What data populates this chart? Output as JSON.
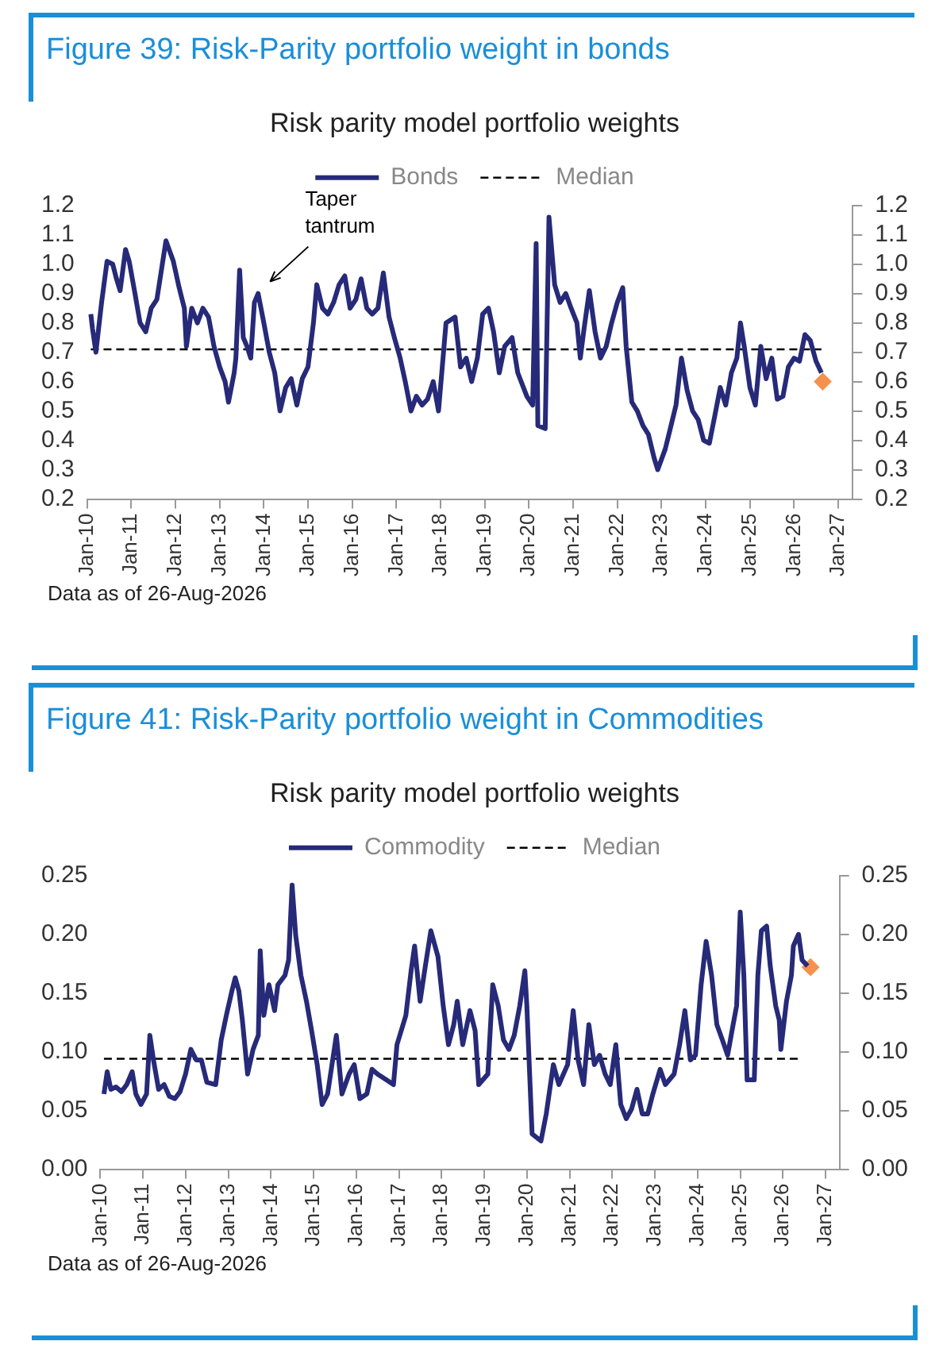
{
  "chart_data": [
    {
      "type": "line",
      "title": "Figure 39: Risk-Parity portfolio weight in bonds",
      "subtitle": "Risk parity model portfolio weights",
      "xlim": [
        "2010-01-01",
        "2027-05-01"
      ],
      "xticks": [
        {
          "value": "2010-01-01",
          "label": "Jan-10"
        },
        {
          "value": "2011-01-01",
          "label": "Jan-11"
        },
        {
          "value": "2012-01-01",
          "label": "Jan-12"
        },
        {
          "value": "2013-01-01",
          "label": "Jan-13"
        },
        {
          "value": "2014-01-01",
          "label": "Jan-14"
        },
        {
          "value": "2015-01-01",
          "label": "Jan-15"
        },
        {
          "value": "2016-01-01",
          "label": "Jan-16"
        },
        {
          "value": "2017-01-01",
          "label": "Jan-17"
        },
        {
          "value": "2018-01-01",
          "label": "Jan-18"
        },
        {
          "value": "2019-01-01",
          "label": "Jan-19"
        },
        {
          "value": "2020-01-01",
          "label": "Jan-20"
        },
        {
          "value": "2021-01-01",
          "label": "Jan-21"
        },
        {
          "value": "2022-01-01",
          "label": "Jan-22"
        },
        {
          "value": "2023-01-01",
          "label": "Jan-23"
        },
        {
          "value": "2024-01-01",
          "label": "Jan-24"
        },
        {
          "value": "2025-01-01",
          "label": "Jan-25"
        },
        {
          "value": "2026-01-01",
          "label": "Jan-26"
        },
        {
          "value": "2027-01-01",
          "label": "Jan-27"
        }
      ],
      "ylim": [
        0.2,
        1.2
      ],
      "yticks": [
        0.2,
        0.3,
        0.4,
        0.5,
        0.6,
        0.7,
        0.8,
        0.9,
        {
          "value": 1,
          "label": "1.0"
        },
        1.1,
        1.2
      ],
      "y2lim": [
        0.2,
        1.2
      ],
      "y2ticks": [
        0.2,
        0.3,
        0.4,
        0.5,
        0.6,
        0.7,
        0.8,
        0.9,
        {
          "value": 1,
          "label": "1.0"
        },
        1.1,
        1.2
      ],
      "grid": false,
      "legend": "top",
      "series": [
        {
          "name": "Bonds",
          "type": "line",
          "color": "#262a78",
          "line_style": "solid",
          "marker": "none",
          "x": [
            "2010-02-01",
            "2010-02-15",
            "2010-03-15",
            "2010-05-01",
            "2010-06-15",
            "2010-08-01",
            "2010-09-01",
            "2010-10-01",
            "2010-11-15",
            "2010-12-15",
            "2011-02-01",
            "2011-03-15",
            "2011-05-01",
            "2011-06-15",
            "2011-08-01",
            "2011-09-15",
            "2011-10-15",
            "2011-12-15",
            "2012-02-01",
            "2012-03-15",
            "2012-04-01",
            "2012-05-15",
            "2012-07-01",
            "2012-08-15",
            "2012-10-01",
            "2012-11-15",
            "2013-01-01",
            "2013-02-15",
            "2013-03-15",
            "2013-05-01",
            "2013-05-15",
            "2013-06-15",
            "2013-07-15",
            "2013-08-15",
            "2013-09-15",
            "2013-10-15",
            "2013-11-15",
            "2014-01-01",
            "2014-02-15",
            "2014-04-01",
            "2014-05-15",
            "2014-07-01",
            "2014-08-15",
            "2014-10-01",
            "2014-11-15",
            "2015-01-01",
            "2015-02-15",
            "2015-03-15",
            "2015-05-01",
            "2015-06-15",
            "2015-08-01",
            "2015-09-15",
            "2015-11-01",
            "2015-12-15",
            "2016-02-01",
            "2016-03-15",
            "2016-05-01",
            "2016-06-15",
            "2016-08-01",
            "2016-09-15",
            "2016-11-01",
            "2016-12-15",
            "2017-02-01",
            "2017-03-15",
            "2017-05-01",
            "2017-06-15",
            "2017-08-01",
            "2017-09-15",
            "2017-11-01",
            "2017-12-15",
            "2018-02-15",
            "2018-05-01",
            "2018-06-15",
            "2018-08-01",
            "2018-09-15",
            "2018-11-01",
            "2018-12-15",
            "2019-02-01",
            "2019-03-15",
            "2019-05-01",
            "2019-06-15",
            "2019-08-15",
            "2019-10-01",
            "2019-12-15",
            "2020-02-01",
            "2020-03-01",
            "2020-03-15",
            "2020-05-15",
            "2020-06-15",
            "2020-08-01",
            "2020-09-15",
            "2020-11-01",
            "2020-12-15",
            "2021-02-01",
            "2021-03-01",
            "2021-04-01",
            "2021-05-15",
            "2021-07-01",
            "2021-08-15",
            "2021-10-01",
            "2021-11-15",
            "2022-01-01",
            "2022-02-15",
            "2022-03-15",
            "2022-05-01",
            "2022-06-15",
            "2022-08-01",
            "2022-09-15",
            "2022-11-01",
            "2022-12-01",
            "2023-02-01",
            "2023-03-15",
            "2023-05-01",
            "2023-06-15",
            "2023-08-01",
            "2023-09-15",
            "2023-11-01",
            "2023-12-15",
            "2024-02-01",
            "2024-03-15",
            "2024-05-01",
            "2024-06-15",
            "2024-08-01",
            "2024-09-15",
            "2024-10-15",
            "2024-11-15",
            "2025-01-01",
            "2025-02-15",
            "2025-04-01",
            "2025-05-15",
            "2025-07-01",
            "2025-08-15",
            "2025-10-01",
            "2025-11-15",
            "2026-01-01",
            "2026-02-15",
            "2026-04-01",
            "2026-05-15",
            "2026-07-01",
            "2026-08-15"
          ],
          "values": [
            0.83,
            0.78,
            0.7,
            0.87,
            1.01,
            1.0,
            0.95,
            0.91,
            1.05,
            1.01,
            0.9,
            0.8,
            0.77,
            0.85,
            0.88,
            1.0,
            1.08,
            1.01,
            0.92,
            0.85,
            0.72,
            0.85,
            0.8,
            0.85,
            0.82,
            0.72,
            0.65,
            0.6,
            0.53,
            0.63,
            0.68,
            0.98,
            0.75,
            0.72,
            0.68,
            0.87,
            0.9,
            0.8,
            0.7,
            0.63,
            0.5,
            0.58,
            0.61,
            0.52,
            0.61,
            0.65,
            0.8,
            0.93,
            0.85,
            0.83,
            0.87,
            0.93,
            0.96,
            0.85,
            0.88,
            0.95,
            0.85,
            0.83,
            0.85,
            0.97,
            0.82,
            0.75,
            0.68,
            0.6,
            0.5,
            0.55,
            0.52,
            0.54,
            0.6,
            0.5,
            0.8,
            0.82,
            0.65,
            0.68,
            0.6,
            0.68,
            0.83,
            0.85,
            0.77,
            0.63,
            0.72,
            0.75,
            0.63,
            0.55,
            0.52,
            1.07,
            0.45,
            0.44,
            1.16,
            0.93,
            0.87,
            0.9,
            0.85,
            0.8,
            0.68,
            0.78,
            0.91,
            0.77,
            0.68,
            0.72,
            0.8,
            0.87,
            0.92,
            0.72,
            0.53,
            0.5,
            0.45,
            0.42,
            0.34,
            0.3,
            0.37,
            0.44,
            0.52,
            0.68,
            0.57,
            0.5,
            0.47,
            0.4,
            0.39,
            0.48,
            0.58,
            0.52,
            0.63,
            0.68,
            0.8,
            0.72,
            0.58,
            0.52,
            0.72,
            0.61,
            0.68,
            0.54,
            0.55,
            0.65,
            0.68,
            0.67,
            0.76,
            0.74,
            0.67,
            0.63
          ]
        },
        {
          "name": "Median",
          "type": "line",
          "color": "#000000",
          "line_style": "dashed",
          "marker": "none",
          "x": [
            "2010-02-01",
            "2026-08-15"
          ],
          "values": [
            0.71,
            0.71
          ]
        },
        {
          "type": "scatter",
          "color": "#f4914e",
          "marker": "diamond",
          "x": [
            "2026-08-26"
          ],
          "values": [
            0.6
          ]
        }
      ],
      "annotations": [
        "Taper tantrum",
        "Data as of 26-Aug-2026"
      ]
    },
    {
      "type": "line",
      "title": "Figure 41: Risk-Parity portfolio weight in Commodities",
      "subtitle": "Risk parity model portfolio weights",
      "xlim": [
        "2010-01-01",
        "2027-05-01"
      ],
      "xticks": [
        {
          "value": "2010-01-01",
          "label": "Jan-10"
        },
        {
          "value": "2011-01-01",
          "label": "Jan-11"
        },
        {
          "value": "2012-01-01",
          "label": "Jan-12"
        },
        {
          "value": "2013-01-01",
          "label": "Jan-13"
        },
        {
          "value": "2014-01-01",
          "label": "Jan-14"
        },
        {
          "value": "2015-01-01",
          "label": "Jan-15"
        },
        {
          "value": "2016-01-01",
          "label": "Jan-16"
        },
        {
          "value": "2017-01-01",
          "label": "Jan-17"
        },
        {
          "value": "2018-01-01",
          "label": "Jan-18"
        },
        {
          "value": "2019-01-01",
          "label": "Jan-19"
        },
        {
          "value": "2020-01-01",
          "label": "Jan-20"
        },
        {
          "value": "2021-01-01",
          "label": "Jan-21"
        },
        {
          "value": "2022-01-01",
          "label": "Jan-22"
        },
        {
          "value": "2023-01-01",
          "label": "Jan-23"
        },
        {
          "value": "2024-01-01",
          "label": "Jan-24"
        },
        {
          "value": "2025-01-01",
          "label": "Jan-25"
        },
        {
          "value": "2026-01-01",
          "label": "Jan-26"
        },
        {
          "value": "2027-01-01",
          "label": "Jan-27"
        }
      ],
      "ylim": [
        0,
        0.25
      ],
      "yticks": [
        {
          "value": 0,
          "label": "0.00"
        },
        {
          "value": 0.05,
          "label": "0.05"
        },
        {
          "value": 0.1,
          "label": "0.10"
        },
        {
          "value": 0.15,
          "label": "0.15"
        },
        {
          "value": 0.2,
          "label": "0.20"
        },
        {
          "value": 0.25,
          "label": "0.25"
        }
      ],
      "y2lim": [
        0,
        0.25
      ],
      "y2ticks": [
        {
          "value": 0,
          "label": "0.00"
        },
        {
          "value": 0.05,
          "label": "0.05"
        },
        {
          "value": 0.1,
          "label": "0.10"
        },
        {
          "value": 0.15,
          "label": "0.15"
        },
        {
          "value": 0.2,
          "label": "0.20"
        },
        {
          "value": 0.25,
          "label": "0.25"
        }
      ],
      "grid": false,
      "legend": "top",
      "series": [
        {
          "name": "Commodity",
          "type": "line",
          "color": "#262a78",
          "line_style": "solid",
          "marker": "none",
          "x": [
            "2010-02-01",
            "2010-03-01",
            "2010-04-01",
            "2010-05-15",
            "2010-07-01",
            "2010-08-15",
            "2010-10-01",
            "2010-11-01",
            "2010-12-15",
            "2011-02-01",
            "2011-03-01",
            "2011-04-01",
            "2011-05-15",
            "2011-07-01",
            "2011-08-15",
            "2011-10-01",
            "2011-11-15",
            "2012-01-01",
            "2012-02-15",
            "2012-04-01",
            "2012-05-15",
            "2012-07-01",
            "2012-09-15",
            "2012-11-01",
            "2012-12-15",
            "2013-02-01",
            "2013-03-01",
            "2013-04-01",
            "2013-05-01",
            "2013-06-15",
            "2013-08-01",
            "2013-09-15",
            "2013-10-01",
            "2013-11-01",
            "2013-12-15",
            "2014-02-01",
            "2014-03-01",
            "2014-05-01",
            "2014-06-01",
            "2014-07-01",
            "2014-08-01",
            "2014-09-15",
            "2014-11-01",
            "2014-12-15",
            "2015-02-01",
            "2015-03-15",
            "2015-05-01",
            "2015-07-15",
            "2015-09-01",
            "2015-11-01",
            "2015-12-15",
            "2016-02-01",
            "2016-04-01",
            "2016-05-15",
            "2016-07-01",
            "2016-09-15",
            "2016-11-15",
            "2016-12-15",
            "2017-03-01",
            "2017-04-15",
            "2017-05-15",
            "2017-07-01",
            "2017-08-15",
            "2017-10-01",
            "2017-12-01",
            "2018-01-15",
            "2018-03-01",
            "2018-04-15",
            "2018-05-15",
            "2018-07-01",
            "2018-09-01",
            "2018-10-15",
            "2018-11-15",
            "2019-02-01",
            "2019-03-15",
            "2019-05-01",
            "2019-06-15",
            "2019-08-01",
            "2019-09-15",
            "2019-11-01",
            "2019-12-15",
            "2020-01-01",
            "2020-02-15",
            "2020-05-01",
            "2020-06-15",
            "2020-08-15",
            "2020-10-01",
            "2020-12-15",
            "2021-02-01",
            "2021-03-15",
            "2021-05-01",
            "2021-06-15",
            "2021-08-01",
            "2021-09-15",
            "2021-11-01",
            "2021-12-15",
            "2022-02-01",
            "2022-03-15",
            "2022-05-01",
            "2022-06-15",
            "2022-08-01",
            "2022-09-15",
            "2022-11-01",
            "2022-12-15",
            "2023-02-15",
            "2023-04-01",
            "2023-06-15",
            "2023-08-01",
            "2023-09-15",
            "2023-11-01",
            "2023-12-15",
            "2024-02-01",
            "2024-03-15",
            "2024-05-01",
            "2024-06-15",
            "2024-08-01",
            "2024-09-15",
            "2024-11-01",
            "2024-12-01",
            "2025-01-01",
            "2025-02-01",
            "2025-03-01",
            "2025-05-01",
            "2025-06-01",
            "2025-07-01",
            "2025-08-15",
            "2025-09-15",
            "2025-11-01",
            "2025-12-01",
            "2025-12-15",
            "2026-02-01",
            "2026-03-15",
            "2026-04-01",
            "2026-05-15",
            "2026-06-15",
            "2026-08-01"
          ],
          "values": [
            0.064,
            0.083,
            0.068,
            0.07,
            0.066,
            0.072,
            0.083,
            0.064,
            0.055,
            0.064,
            0.114,
            0.093,
            0.068,
            0.072,
            0.062,
            0.06,
            0.066,
            0.081,
            0.102,
            0.093,
            0.093,
            0.074,
            0.072,
            0.11,
            0.131,
            0.152,
            0.163,
            0.152,
            0.127,
            0.081,
            0.102,
            0.114,
            0.186,
            0.131,
            0.157,
            0.135,
            0.157,
            0.165,
            0.178,
            0.242,
            0.199,
            0.165,
            0.143,
            0.118,
            0.089,
            0.055,
            0.064,
            0.114,
            0.064,
            0.081,
            0.089,
            0.06,
            0.064,
            0.085,
            0.081,
            0.076,
            0.072,
            0.106,
            0.131,
            0.169,
            0.19,
            0.143,
            0.173,
            0.203,
            0.181,
            0.139,
            0.106,
            0.123,
            0.143,
            0.106,
            0.135,
            0.118,
            0.072,
            0.081,
            0.157,
            0.139,
            0.11,
            0.102,
            0.114,
            0.139,
            0.169,
            0.139,
            0.03,
            0.024,
            0.047,
            0.089,
            0.072,
            0.089,
            0.135,
            0.093,
            0.072,
            0.123,
            0.089,
            0.097,
            0.081,
            0.072,
            0.106,
            0.055,
            0.043,
            0.051,
            0.068,
            0.047,
            0.047,
            0.064,
            0.085,
            0.072,
            0.081,
            0.106,
            0.135,
            0.093,
            0.097,
            0.157,
            0.194,
            0.165,
            0.123,
            0.11,
            0.097,
            0.123,
            0.139,
            0.219,
            0.165,
            0.076,
            0.076,
            0.165,
            0.203,
            0.207,
            0.173,
            0.139,
            0.127,
            0.102,
            0.143,
            0.165,
            0.19,
            0.2,
            0.178,
            0.173
          ]
        },
        {
          "name": "Median",
          "type": "line",
          "color": "#000000",
          "line_style": "dashed",
          "marker": "none",
          "x": [
            "2010-02-01",
            "2026-05-15"
          ],
          "values": [
            0.094,
            0.094
          ]
        },
        {
          "type": "scatter",
          "color": "#f4914e",
          "marker": "diamond",
          "x": [
            "2026-08-26"
          ],
          "values": [
            0.172
          ]
        }
      ],
      "annotations": [
        "Data as of 26-Aug-2026"
      ]
    }
  ]
}
